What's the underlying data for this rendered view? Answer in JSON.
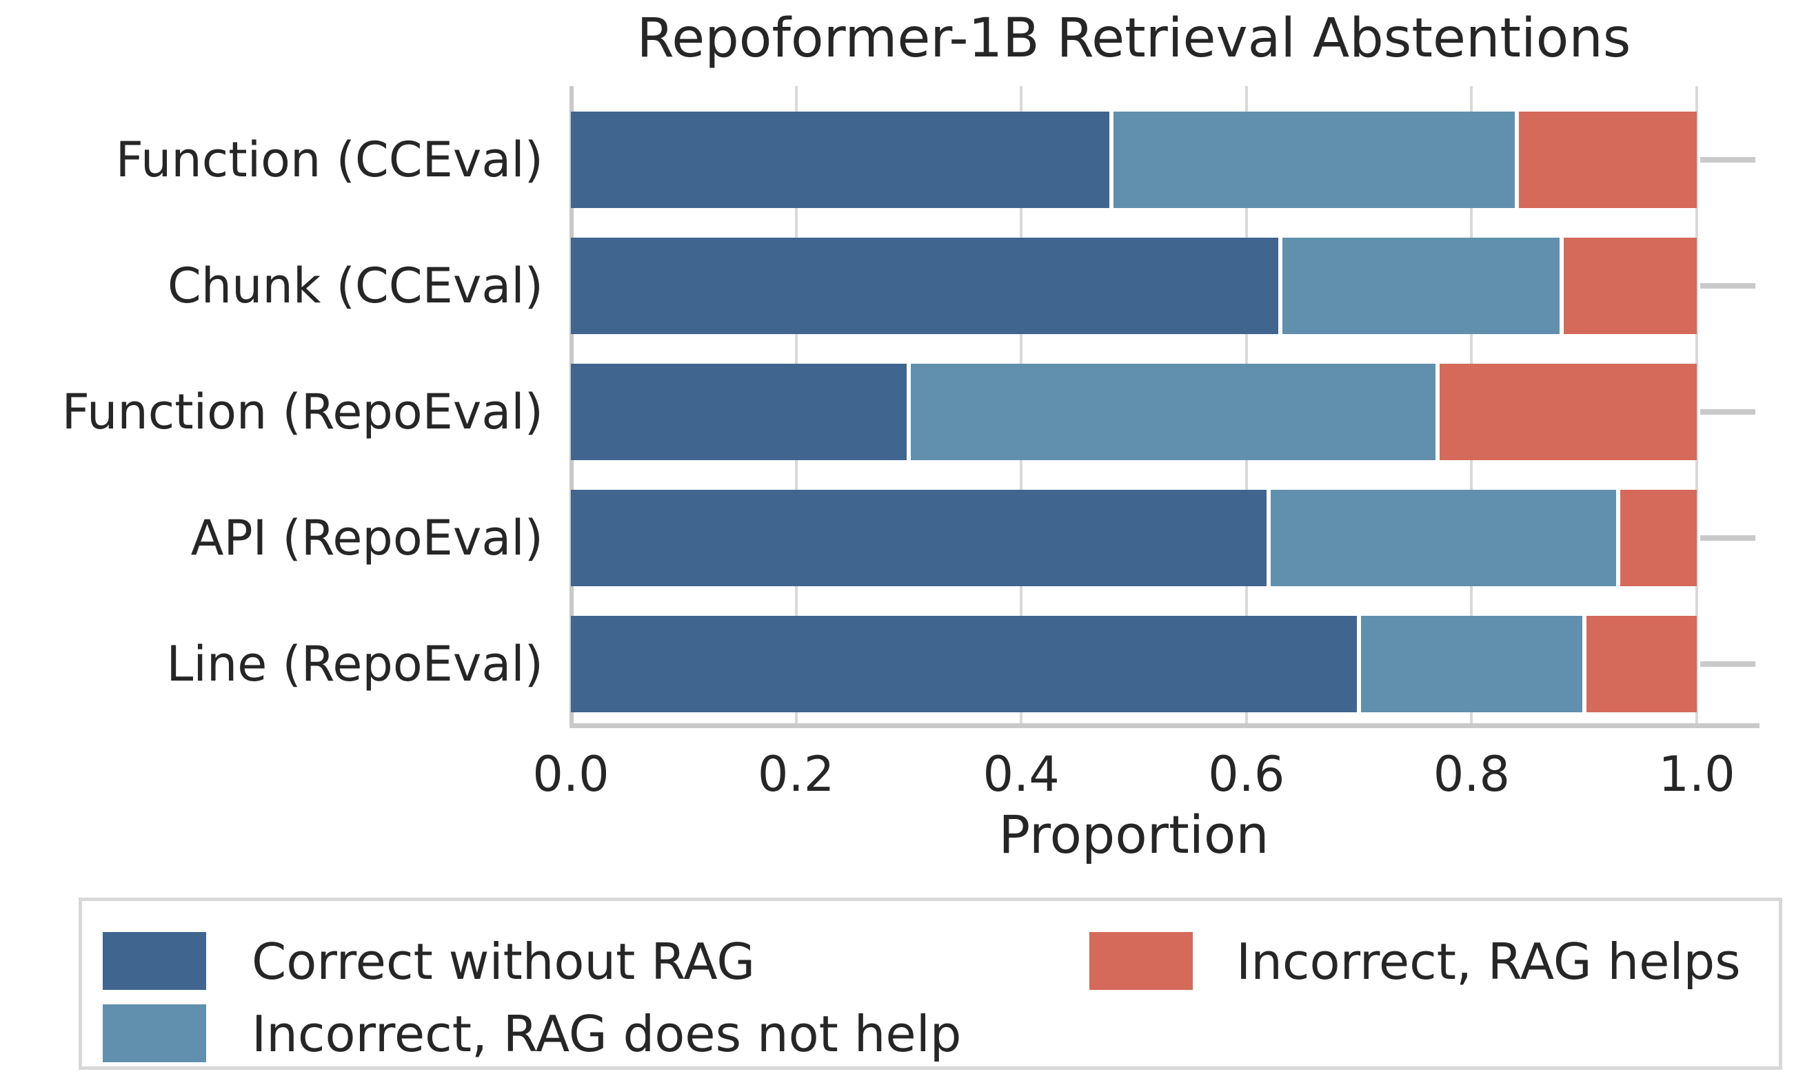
{
  "title": "Repoformer-1B Retrieval Abstentions",
  "chart_data": {
    "type": "bar",
    "orientation": "horizontal",
    "stacked": true,
    "title": "Repoformer-1B Retrieval Abstentions",
    "xlabel": "Proportion",
    "xlim": [
      0,
      1
    ],
    "xticks": [
      "0.0",
      "0.2",
      "0.4",
      "0.6",
      "0.8",
      "1.0"
    ],
    "grid": true,
    "legend_position": "below",
    "categories": [
      "Function (CCEval)",
      "Chunk (CCEval)",
      "Function (RepoEval)",
      "API (RepoEval)",
      "Line (RepoEval)"
    ],
    "series": [
      {
        "name": "Correct without RAG",
        "color": "#40658f",
        "values": [
          0.48,
          0.63,
          0.3,
          0.62,
          0.7
        ]
      },
      {
        "name": "Incorrect, RAG does not help",
        "color": "#6090ad",
        "values": [
          0.36,
          0.25,
          0.47,
          0.31,
          0.2
        ]
      },
      {
        "name": "Incorrect, RAG helps",
        "color": "#d5695a",
        "values": [
          0.16,
          0.12,
          0.23,
          0.07,
          0.1
        ]
      }
    ]
  },
  "colors": {
    "background": "#ffffff",
    "grid": "#d9d9d9",
    "spine": "#c9c9c9",
    "text": "#262626",
    "legend_border": "#d8d8d8",
    "segment_gap": "#ffffff"
  }
}
